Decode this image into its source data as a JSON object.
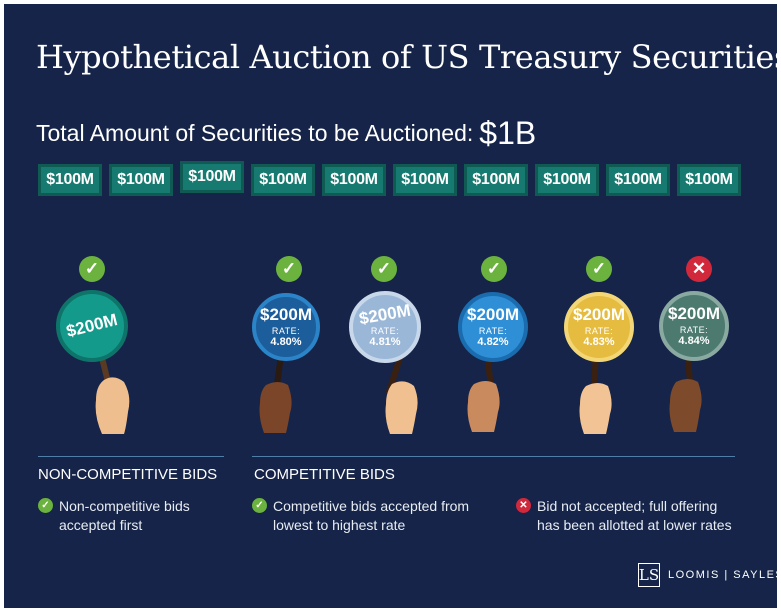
{
  "title": "Hypothetical Auction of US Treasury Securities",
  "subtitle": {
    "label": "Total Amount of Securities to be Auctioned:",
    "amount": "$1B"
  },
  "tiles": [
    "$100M",
    "$100M",
    "$100M",
    "$100M",
    "$100M",
    "$100M",
    "$100M",
    "$100M",
    "$100M",
    "$100M"
  ],
  "bids": [
    {
      "status_icon": "check-icon",
      "amount": "$200M",
      "rate_label": "",
      "rate": "",
      "color": "#149a8b"
    },
    {
      "status_icon": "check-icon",
      "amount": "$200M",
      "rate_label": "RATE:",
      "rate": "4.80%",
      "color": "#1c5d9c"
    },
    {
      "status_icon": "check-icon",
      "amount": "$200M",
      "rate_label": "RATE:",
      "rate": "4.81%",
      "color": "#9ab7d8"
    },
    {
      "status_icon": "check-icon",
      "amount": "$200M",
      "rate_label": "RATE:",
      "rate": "4.82%",
      "color": "#2e8fd6"
    },
    {
      "status_icon": "check-icon",
      "amount": "$200M",
      "rate_label": "RATE:",
      "rate": "4.83%",
      "color": "#e5bc40"
    },
    {
      "status_icon": "x-icon",
      "amount": "$200M",
      "rate_label": "RATE:",
      "rate": "4.84%",
      "color": "#4c7a6f"
    }
  ],
  "sections": {
    "non_competitive": {
      "heading": "NON-COMPETITIVE BIDS",
      "note_line1": "Non-competitive bids",
      "note_line2": "accepted first"
    },
    "competitive": {
      "heading": "COMPETITIVE BIDS",
      "note_line1": "Competitive bids accepted from",
      "note_line2": "lowest to highest rate"
    },
    "rejected": {
      "note_line1": "Bid not accepted; full offering",
      "note_line2": "has been allotted at lower rates"
    }
  },
  "logo": {
    "mark": "LS",
    "name": "LOOMIS | SAYLES"
  },
  "colors": {
    "background": "#152448",
    "tile": "#177a70",
    "accepted": "#6bb33e",
    "rejected": "#d2283c"
  }
}
